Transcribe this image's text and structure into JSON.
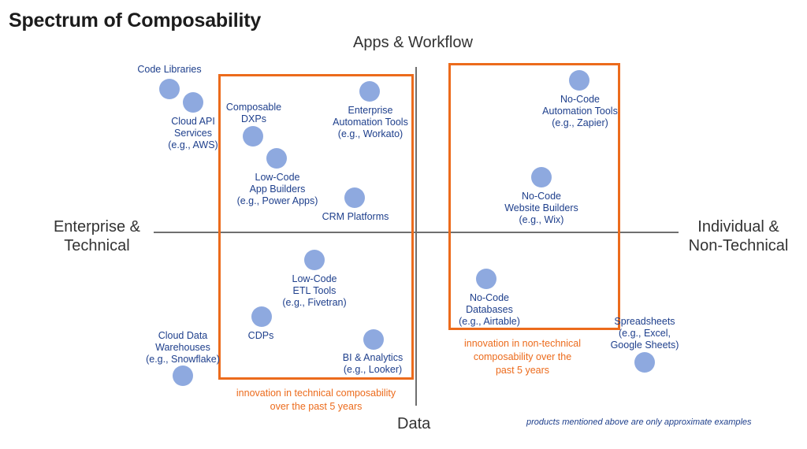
{
  "title": "Spectrum of Composability",
  "axes": {
    "top": "Apps & Workflow",
    "bottom": "Data",
    "left": [
      "Enterprise &",
      "Technical"
    ],
    "right": [
      "Individual &",
      "Non-Technical"
    ]
  },
  "nodes": {
    "code_libraries": [
      "Code Libraries"
    ],
    "cloud_api": [
      "Cloud API",
      "Services",
      "(e.g., AWS)"
    ],
    "composable_dxps": [
      "Composable",
      "DXPs"
    ],
    "enterprise_automation": [
      "Enterprise",
      "Automation Tools",
      "(e.g., Workato)"
    ],
    "low_code_app": [
      "Low-Code",
      "App Builders",
      "(e.g., Power Apps)"
    ],
    "crm": [
      "CRM Platforms"
    ],
    "no_code_automation": [
      "No-Code",
      "Automation Tools",
      "(e.g., Zapier)"
    ],
    "no_code_website": [
      "No-Code",
      "Website Builders",
      "(e.g., Wix)"
    ],
    "low_code_etl": [
      "Low-Code",
      "ETL Tools",
      "(e.g., Fivetran)"
    ],
    "cdps": [
      "CDPs"
    ],
    "bi": [
      "BI & Analytics",
      "(e.g., Looker)"
    ],
    "cloud_dw": [
      "Cloud Data",
      "Warehouses",
      "(e.g., Snowflake)"
    ],
    "no_code_db": [
      "No-Code",
      "Databases",
      "(e.g., Airtable)"
    ],
    "spreadsheets": [
      "Spreadsheets",
      "(e.g., Excel,",
      "Google Sheets)"
    ]
  },
  "notes": {
    "technical": [
      "innovation in technical composability",
      "over the past 5 years"
    ],
    "non_technical": [
      "innovation in non-technical",
      "composability over the",
      "past 5 years"
    ]
  },
  "footnote": "products mentioned above are only approximate examples",
  "colors": {
    "accent": "#ec6b1c",
    "dot": "#8ea9df",
    "label": "#1e3f8c",
    "axis": "#6f6f6f"
  }
}
